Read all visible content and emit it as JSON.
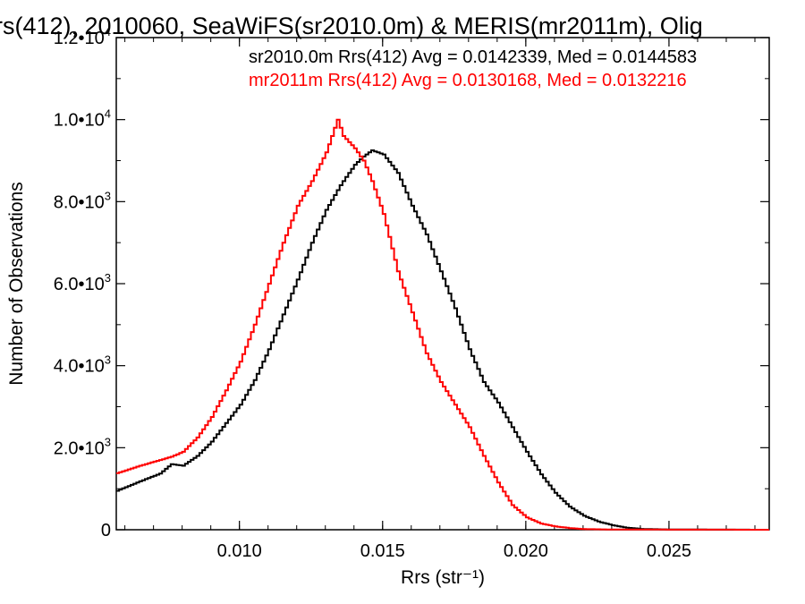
{
  "chart_data": {
    "type": "line",
    "title": "rs(412), 2010060, SeaWiFS(sr2010.0m) & MERIS(mr2011m), Olig",
    "xlabel": "Rrs (str⁻¹)",
    "ylabel": "Number of Observations",
    "xlim": [
      0.0057,
      0.0285
    ],
    "ylim": [
      0,
      12000
    ],
    "x_ticks": [
      {
        "value": 0.01,
        "label": "0.010"
      },
      {
        "value": 0.015,
        "label": "0.015"
      },
      {
        "value": 0.02,
        "label": "0.020"
      },
      {
        "value": 0.025,
        "label": "0.025"
      }
    ],
    "y_ticks": [
      {
        "value": 0,
        "mant": "0",
        "exp": ""
      },
      {
        "value": 2000,
        "mant": "2.0•10",
        "exp": "3"
      },
      {
        "value": 4000,
        "mant": "4.0•10",
        "exp": "3"
      },
      {
        "value": 6000,
        "mant": "6.0•10",
        "exp": "3"
      },
      {
        "value": 8000,
        "mant": "8.0•10",
        "exp": "3"
      },
      {
        "value": 10000,
        "mant": "1.0•10",
        "exp": "4"
      },
      {
        "value": 12000,
        "mant": "1.2•10",
        "exp": "4"
      }
    ],
    "legend_placement": "top",
    "series": [
      {
        "name": "sr2010.0m",
        "legend_text": "sr2010.0m Rrs(412) Avg = 0.0142339, Med = 0.0144583",
        "color": "#000000",
        "points": [
          [
            0.0057,
            950
          ],
          [
            0.0065,
            1180
          ],
          [
            0.0072,
            1370
          ],
          [
            0.0076,
            1600
          ],
          [
            0.008,
            1560
          ],
          [
            0.0085,
            1800
          ],
          [
            0.009,
            2150
          ],
          [
            0.0095,
            2600
          ],
          [
            0.01,
            3050
          ],
          [
            0.0105,
            3650
          ],
          [
            0.011,
            4400
          ],
          [
            0.0115,
            5250
          ],
          [
            0.012,
            6100
          ],
          [
            0.0125,
            7000
          ],
          [
            0.013,
            7800
          ],
          [
            0.0135,
            8400
          ],
          [
            0.014,
            8900
          ],
          [
            0.0143,
            9100
          ],
          [
            0.0146,
            9250
          ],
          [
            0.015,
            9150
          ],
          [
            0.0155,
            8700
          ],
          [
            0.016,
            7900
          ],
          [
            0.0165,
            7200
          ],
          [
            0.017,
            6300
          ],
          [
            0.0175,
            5400
          ],
          [
            0.018,
            4400
          ],
          [
            0.0185,
            3600
          ],
          [
            0.019,
            3100
          ],
          [
            0.0195,
            2500
          ],
          [
            0.02,
            1900
          ],
          [
            0.0205,
            1350
          ],
          [
            0.021,
            900
          ],
          [
            0.0215,
            560
          ],
          [
            0.022,
            340
          ],
          [
            0.0225,
            200
          ],
          [
            0.023,
            110
          ],
          [
            0.0235,
            50
          ],
          [
            0.024,
            20
          ],
          [
            0.025,
            5
          ],
          [
            0.0285,
            0
          ]
        ]
      },
      {
        "name": "mr2011m",
        "legend_text": "mr2011m Rrs(412) Avg = 0.0130168, Med = 0.0132216",
        "color": "#ff0000",
        "points": [
          [
            0.0057,
            1380
          ],
          [
            0.0065,
            1560
          ],
          [
            0.0072,
            1700
          ],
          [
            0.0076,
            1780
          ],
          [
            0.008,
            1900
          ],
          [
            0.0085,
            2250
          ],
          [
            0.009,
            2750
          ],
          [
            0.0095,
            3400
          ],
          [
            0.01,
            4100
          ],
          [
            0.0105,
            5000
          ],
          [
            0.011,
            6000
          ],
          [
            0.0115,
            7000
          ],
          [
            0.012,
            7900
          ],
          [
            0.0125,
            8500
          ],
          [
            0.013,
            9200
          ],
          [
            0.0134,
            10000
          ],
          [
            0.0136,
            9600
          ],
          [
            0.014,
            9300
          ],
          [
            0.0143,
            9000
          ],
          [
            0.0146,
            8500
          ],
          [
            0.015,
            7700
          ],
          [
            0.0155,
            6300
          ],
          [
            0.016,
            5300
          ],
          [
            0.0165,
            4300
          ],
          [
            0.017,
            3600
          ],
          [
            0.0175,
            3050
          ],
          [
            0.018,
            2500
          ],
          [
            0.0185,
            1800
          ],
          [
            0.019,
            1150
          ],
          [
            0.0195,
            600
          ],
          [
            0.02,
            300
          ],
          [
            0.0205,
            150
          ],
          [
            0.021,
            80
          ],
          [
            0.0215,
            40
          ],
          [
            0.022,
            15
          ],
          [
            0.023,
            5
          ],
          [
            0.0285,
            0
          ]
        ]
      }
    ]
  }
}
